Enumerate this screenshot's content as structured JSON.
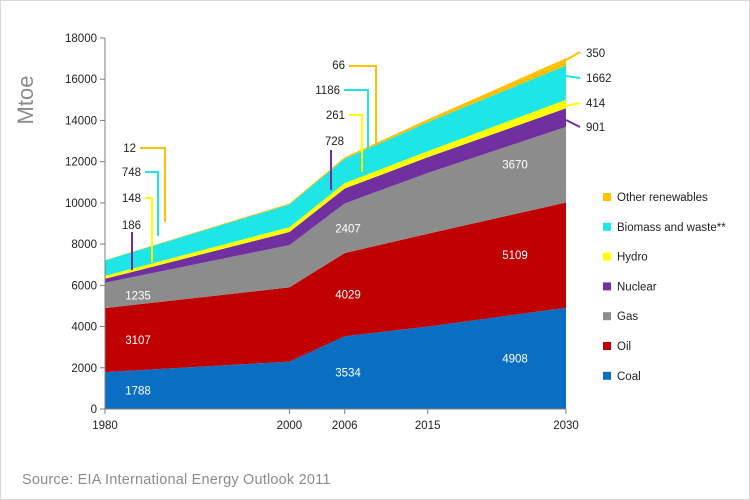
{
  "source_text": "Source: EIA International  Energy Outlook 2011",
  "chart_data": {
    "type": "area",
    "stacked": true,
    "ylabel": "Mtoe",
    "ylim": [
      0,
      18000
    ],
    "yticks": [
      0,
      2000,
      4000,
      6000,
      8000,
      10000,
      12000,
      14000,
      16000,
      18000
    ],
    "x": [
      "1980",
      "2000",
      "2006",
      "2015",
      "2030"
    ],
    "legend_position": "right",
    "series": [
      {
        "name": "Coal",
        "color": "#0a6fc2",
        "values": [
          1788,
          2300,
          3534,
          4000,
          4908
        ]
      },
      {
        "name": "Oil",
        "color": "#c00000",
        "values": [
          3107,
          3600,
          4029,
          4500,
          5109
        ]
      },
      {
        "name": "Gas",
        "color": "#8c8c8c",
        "values": [
          1235,
          2050,
          2407,
          2950,
          3670
        ]
      },
      {
        "name": "Nuclear",
        "color": "#7030a0",
        "values": [
          186,
          640,
          728,
          760,
          901
        ]
      },
      {
        "name": "Hydro",
        "color": "#ffff00",
        "values": [
          148,
          230,
          261,
          300,
          414
        ]
      },
      {
        "name": "Biomass and waste**",
        "color": "#1ee6e6",
        "values": [
          748,
          1100,
          1186,
          1400,
          1662
        ]
      },
      {
        "name": "Other renewables",
        "color": "#ffc000",
        "values": [
          12,
          50,
          66,
          140,
          350
        ]
      }
    ],
    "data_labels": {
      "inside": [
        {
          "series": 0,
          "point": 0,
          "text": "1788"
        },
        {
          "series": 0,
          "point": 2,
          "text": "3534"
        },
        {
          "series": 0,
          "point": 4,
          "text": "4908"
        },
        {
          "series": 1,
          "point": 0,
          "text": "3107"
        },
        {
          "series": 1,
          "point": 2,
          "text": "4029"
        },
        {
          "series": 1,
          "point": 4,
          "text": "5109"
        },
        {
          "series": 2,
          "point": 0,
          "text": "1235"
        },
        {
          "series": 2,
          "point": 2,
          "text": "2407"
        },
        {
          "series": 2,
          "point": 4,
          "text": "3670"
        }
      ],
      "callouts_1980": [
        "12",
        "748",
        "148",
        "186"
      ],
      "callouts_2006": [
        "66",
        "1186",
        "261",
        "728"
      ],
      "callouts_2030": [
        "350",
        "1662",
        "414",
        "901"
      ]
    }
  }
}
